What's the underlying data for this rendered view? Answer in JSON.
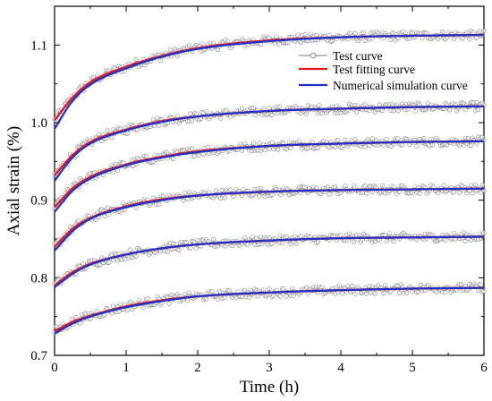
{
  "chart_data": {
    "type": "line",
    "xlabel": "Time (h)",
    "ylabel": "Axial strain (%)",
    "xlim": [
      0,
      6
    ],
    "ylim": [
      0.7,
      1.15
    ],
    "x_ticks": [
      "0",
      "1",
      "2",
      "3",
      "4",
      "5",
      "6"
    ],
    "y_ticks": [
      "0.7",
      "0.8",
      "0.9",
      "1.0",
      "1.1"
    ],
    "legend_position": "top-right",
    "grid": false,
    "series": [
      {
        "name": "Test curve",
        "color": "#7a7a7a",
        "marker": "open-circle"
      },
      {
        "name": "Test fitting curve",
        "color": "#e8191c"
      },
      {
        "name": "Numerical simulation curve",
        "color": "#1f2fc9"
      }
    ],
    "curves": [
      {
        "x": [
          0,
          0.25,
          0.5,
          1,
          1.5,
          2,
          3,
          4,
          5,
          6
        ],
        "test_fitting": [
          1.003,
          1.032,
          1.052,
          1.072,
          1.086,
          1.096,
          1.106,
          1.11,
          1.112,
          1.113
        ],
        "numerical": [
          0.992,
          1.028,
          1.049,
          1.07,
          1.085,
          1.095,
          1.105,
          1.11,
          1.112,
          1.113
        ]
      },
      {
        "x": [
          0,
          0.25,
          0.5,
          1,
          1.5,
          2,
          3,
          4,
          5,
          6
        ],
        "test_fitting": [
          0.932,
          0.958,
          0.975,
          0.991,
          1.002,
          1.008,
          1.015,
          1.018,
          1.02,
          1.021
        ],
        "numerical": [
          0.925,
          0.955,
          0.973,
          0.99,
          1.001,
          1.008,
          1.015,
          1.018,
          1.02,
          1.021
        ]
      },
      {
        "x": [
          0,
          0.25,
          0.5,
          1,
          1.5,
          2,
          3,
          4,
          5,
          6
        ],
        "test_fitting": [
          0.891,
          0.915,
          0.93,
          0.946,
          0.956,
          0.963,
          0.97,
          0.973,
          0.975,
          0.976
        ],
        "numerical": [
          0.885,
          0.912,
          0.928,
          0.945,
          0.955,
          0.962,
          0.97,
          0.973,
          0.975,
          0.976
        ]
      },
      {
        "x": [
          0,
          0.25,
          0.5,
          1,
          1.5,
          2,
          3,
          4,
          5,
          6
        ],
        "test_fitting": [
          0.84,
          0.863,
          0.877,
          0.892,
          0.901,
          0.906,
          0.911,
          0.913,
          0.914,
          0.915
        ],
        "numerical": [
          0.835,
          0.86,
          0.876,
          0.891,
          0.9,
          0.906,
          0.911,
          0.913,
          0.914,
          0.915
        ]
      },
      {
        "x": [
          0,
          0.25,
          0.5,
          1,
          1.5,
          2,
          3,
          4,
          5,
          6
        ],
        "test_fitting": [
          0.79,
          0.807,
          0.818,
          0.83,
          0.838,
          0.843,
          0.848,
          0.851,
          0.852,
          0.853
        ],
        "numerical": [
          0.788,
          0.805,
          0.817,
          0.83,
          0.838,
          0.843,
          0.848,
          0.851,
          0.852,
          0.853
        ]
      },
      {
        "x": [
          0,
          0.25,
          0.5,
          1,
          1.5,
          2,
          3,
          4,
          5,
          6
        ],
        "test_fitting": [
          0.731,
          0.743,
          0.751,
          0.763,
          0.771,
          0.776,
          0.781,
          0.784,
          0.786,
          0.787
        ],
        "numerical": [
          0.728,
          0.741,
          0.75,
          0.762,
          0.77,
          0.776,
          0.781,
          0.784,
          0.786,
          0.787
        ]
      }
    ]
  }
}
